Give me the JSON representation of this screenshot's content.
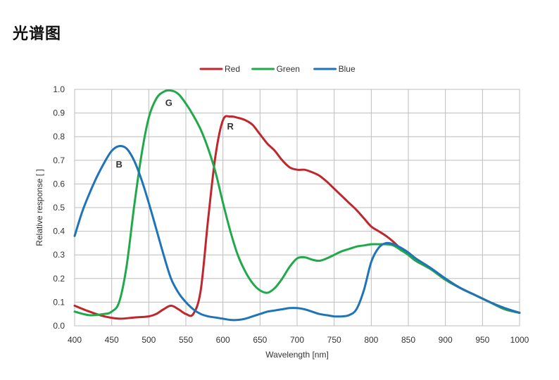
{
  "page": {
    "title": "光谱图"
  },
  "chart_data": {
    "type": "line",
    "title": "",
    "xlabel": "Wavelength [nm]",
    "ylabel": "Relative response [ ]",
    "xlim": [
      400,
      1000
    ],
    "ylim": [
      0,
      1
    ],
    "grid": true,
    "legend_position": "top-center",
    "xticks": [
      400,
      450,
      500,
      550,
      600,
      650,
      700,
      750,
      800,
      850,
      900,
      950,
      1000
    ],
    "yticks": [
      0.0,
      0.1,
      0.2,
      0.3,
      0.4,
      0.5,
      0.6,
      0.7,
      0.8,
      0.9,
      1.0
    ],
    "ytick_labels": [
      "0.0",
      "0.1",
      "0.2",
      "0.3",
      "0.4",
      "0.5",
      "0.6",
      "0.7",
      "0.8",
      "0.9",
      "1.0"
    ],
    "series": [
      {
        "name": "Red",
        "color": "#c0262d",
        "curve_label": "R",
        "label_at": [
          610,
          0.83
        ],
        "x": [
          400,
          420,
          440,
          460,
          480,
          500,
          510,
          520,
          530,
          540,
          550,
          560,
          570,
          580,
          590,
          600,
          610,
          620,
          630,
          640,
          650,
          660,
          670,
          680,
          690,
          700,
          710,
          720,
          730,
          740,
          750,
          760,
          770,
          780,
          790,
          800,
          810,
          820,
          830,
          840,
          850,
          860,
          880,
          900,
          920,
          940,
          960,
          980,
          1000
        ],
        "y": [
          0.085,
          0.06,
          0.04,
          0.03,
          0.035,
          0.04,
          0.05,
          0.07,
          0.085,
          0.07,
          0.05,
          0.05,
          0.15,
          0.45,
          0.72,
          0.87,
          0.885,
          0.88,
          0.87,
          0.85,
          0.81,
          0.77,
          0.74,
          0.7,
          0.67,
          0.66,
          0.66,
          0.65,
          0.635,
          0.61,
          0.58,
          0.55,
          0.52,
          0.49,
          0.455,
          0.42,
          0.4,
          0.38,
          0.355,
          0.325,
          0.3,
          0.275,
          0.24,
          0.195,
          0.16,
          0.13,
          0.1,
          0.07,
          0.055
        ]
      },
      {
        "name": "Green",
        "color": "#21a84a",
        "curve_label": "G",
        "label_at": [
          527,
          0.93
        ],
        "x": [
          400,
          420,
          440,
          450,
          460,
          470,
          480,
          490,
          500,
          510,
          520,
          530,
          540,
          550,
          560,
          570,
          580,
          590,
          600,
          610,
          620,
          630,
          640,
          650,
          660,
          670,
          680,
          690,
          700,
          710,
          720,
          730,
          740,
          750,
          760,
          770,
          780,
          790,
          800,
          810,
          820,
          830,
          840,
          850,
          860,
          880,
          900,
          920,
          940,
          960,
          980,
          1000
        ],
        "y": [
          0.06,
          0.045,
          0.05,
          0.06,
          0.1,
          0.25,
          0.5,
          0.72,
          0.88,
          0.96,
          0.99,
          0.995,
          0.98,
          0.94,
          0.89,
          0.83,
          0.75,
          0.65,
          0.52,
          0.4,
          0.3,
          0.23,
          0.18,
          0.15,
          0.14,
          0.16,
          0.2,
          0.25,
          0.285,
          0.29,
          0.28,
          0.275,
          0.285,
          0.3,
          0.315,
          0.325,
          0.335,
          0.34,
          0.345,
          0.345,
          0.345,
          0.34,
          0.32,
          0.3,
          0.275,
          0.24,
          0.195,
          0.16,
          0.13,
          0.1,
          0.07,
          0.055
        ]
      },
      {
        "name": "Blue",
        "color": "#1f73b7",
        "curve_label": "B",
        "label_at": [
          460,
          0.67
        ],
        "x": [
          400,
          410,
          420,
          430,
          440,
          450,
          460,
          470,
          480,
          490,
          500,
          510,
          520,
          530,
          540,
          550,
          560,
          570,
          580,
          590,
          600,
          610,
          620,
          630,
          640,
          650,
          660,
          670,
          680,
          690,
          700,
          710,
          720,
          730,
          740,
          750,
          760,
          770,
          780,
          790,
          800,
          810,
          820,
          830,
          840,
          850,
          860,
          880,
          900,
          920,
          940,
          960,
          980,
          1000
        ],
        "y": [
          0.38,
          0.48,
          0.56,
          0.63,
          0.69,
          0.74,
          0.76,
          0.75,
          0.7,
          0.62,
          0.52,
          0.41,
          0.3,
          0.2,
          0.14,
          0.1,
          0.07,
          0.05,
          0.04,
          0.035,
          0.03,
          0.025,
          0.025,
          0.03,
          0.04,
          0.05,
          0.06,
          0.065,
          0.07,
          0.075,
          0.075,
          0.07,
          0.06,
          0.05,
          0.045,
          0.04,
          0.04,
          0.045,
          0.07,
          0.15,
          0.27,
          0.33,
          0.35,
          0.345,
          0.33,
          0.31,
          0.285,
          0.245,
          0.2,
          0.16,
          0.13,
          0.1,
          0.075,
          0.055
        ]
      }
    ]
  }
}
